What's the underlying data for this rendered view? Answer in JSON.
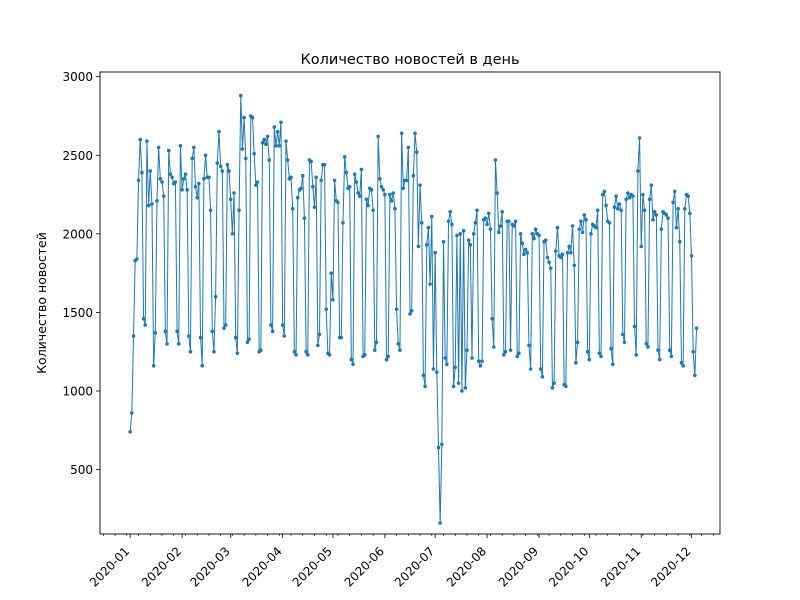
{
  "chart_data": {
    "type": "line",
    "title": "Количество новостей в день",
    "xlabel": "",
    "ylabel": "Количество новостей",
    "x_range": [
      "2019-12-14",
      "2020-12-18"
    ],
    "ylim": [
      90,
      3030
    ],
    "yticks": [
      500,
      1000,
      1500,
      2000,
      2500,
      3000
    ],
    "xticks": [
      "2020-01",
      "2020-02",
      "2020-03",
      "2020-04",
      "2020-05",
      "2020-06",
      "2020-07",
      "2020-08",
      "2020-09",
      "2020-10",
      "2020-11",
      "2020-12"
    ],
    "grid": false,
    "legend": "none",
    "color": "#1f77b4",
    "series": [
      {
        "start_date": "2020-01-01",
        "freq": "daily",
        "values": [
          740,
          860,
          1350,
          1830,
          1840,
          2340,
          2600,
          2390,
          1460,
          1420,
          2590,
          2180,
          2400,
          2190,
          1160,
          1370,
          2210,
          2550,
          2350,
          2330,
          2240,
          1380,
          1300,
          2530,
          2380,
          2360,
          2320,
          2330,
          1380,
          1300,
          2560,
          2280,
          2350,
          2380,
          2280,
          1350,
          1250,
          2480,
          2550,
          2300,
          2230,
          2320,
          1340,
          1160,
          2350,
          2500,
          2360,
          2360,
          2150,
          1380,
          1250,
          1600,
          2450,
          2650,
          2430,
          2400,
          1400,
          1420,
          2440,
          2400,
          2220,
          2000,
          2260,
          1340,
          1240,
          2150,
          2880,
          2540,
          2740,
          2480,
          1310,
          1330,
          2750,
          2740,
          2510,
          2310,
          2330,
          1250,
          1260,
          2580,
          2600,
          2570,
          2620,
          2470,
          1420,
          1380,
          2680,
          2560,
          2650,
          2560,
          2710,
          1420,
          1350,
          2590,
          2470,
          2350,
          2360,
          2160,
          1250,
          1230,
          2230,
          2280,
          2290,
          2370,
          2100,
          1250,
          1230,
          2470,
          2460,
          2300,
          2170,
          2360,
          1290,
          1360,
          2340,
          2440,
          2440,
          1520,
          1240,
          1230,
          1750,
          1580,
          2340,
          2210,
          2200,
          1340,
          1340,
          2070,
          2490,
          2390,
          2290,
          2300,
          1200,
          1170,
          2380,
          2330,
          2260,
          2240,
          2410,
          1220,
          1230,
          2220,
          2180,
          2290,
          2280,
          2150,
          1260,
          1310,
          2620,
          2350,
          2300,
          2280,
          2250,
          1200,
          1220,
          2250,
          2210,
          2260,
          2160,
          1520,
          1300,
          1260,
          2640,
          2290,
          2340,
          2340,
          2550,
          1490,
          1510,
          2370,
          2640,
          2520,
          1920,
          2310,
          2070,
          1100,
          1030,
          1930,
          2040,
          1680,
          2110,
          1140,
          1880,
          1120,
          640,
          160,
          660,
          1950,
          1210,
          1170,
          2080,
          2140,
          2060,
          1030,
          1150,
          1990,
          1050,
          2000,
          1000,
          2020,
          1020,
          1260,
          1960,
          1930,
          1210,
          2000,
          2070,
          2150,
          1190,
          1160,
          1190,
          2090,
          2100,
          2060,
          2130,
          2030,
          1460,
          1280,
          2470,
          2260,
          2010,
          2050,
          2140,
          1230,
          1250,
          2080,
          2080,
          1260,
          2060,
          2050,
          2080,
          1220,
          1240,
          2000,
          1940,
          1870,
          1900,
          1880,
          1290,
          1140,
          2000,
          1970,
          2030,
          2000,
          1990,
          1140,
          1090,
          1950,
          1960,
          1850,
          1820,
          1780,
          1020,
          1050,
          1890,
          2040,
          1860,
          1850,
          1870,
          1040,
          1030,
          1880,
          1920,
          1880,
          2050,
          1800,
          1180,
          1310,
          2030,
          2080,
          2010,
          2120,
          2090,
          1250,
          1200,
          2000,
          2060,
          2050,
          2040,
          2150,
          1240,
          1220,
          2250,
          2270,
          2180,
          2080,
          2070,
          1270,
          1170,
          2170,
          2240,
          2160,
          2190,
          2150,
          1360,
          1310,
          2220,
          2260,
          2230,
          2250,
          2240,
          1410,
          1230,
          2400,
          2610,
          1920,
          2250,
          2150,
          1300,
          1280,
          2220,
          2310,
          2090,
          2140,
          2120,
          1260,
          1200,
          2030,
          2140,
          2130,
          2120,
          2100,
          1260,
          1220,
          2200,
          2270,
          2040,
          2160,
          1950,
          1180,
          1160,
          2160,
          2250,
          2240,
          2130,
          1860,
          1250,
          1100,
          1400
        ]
      }
    ]
  }
}
